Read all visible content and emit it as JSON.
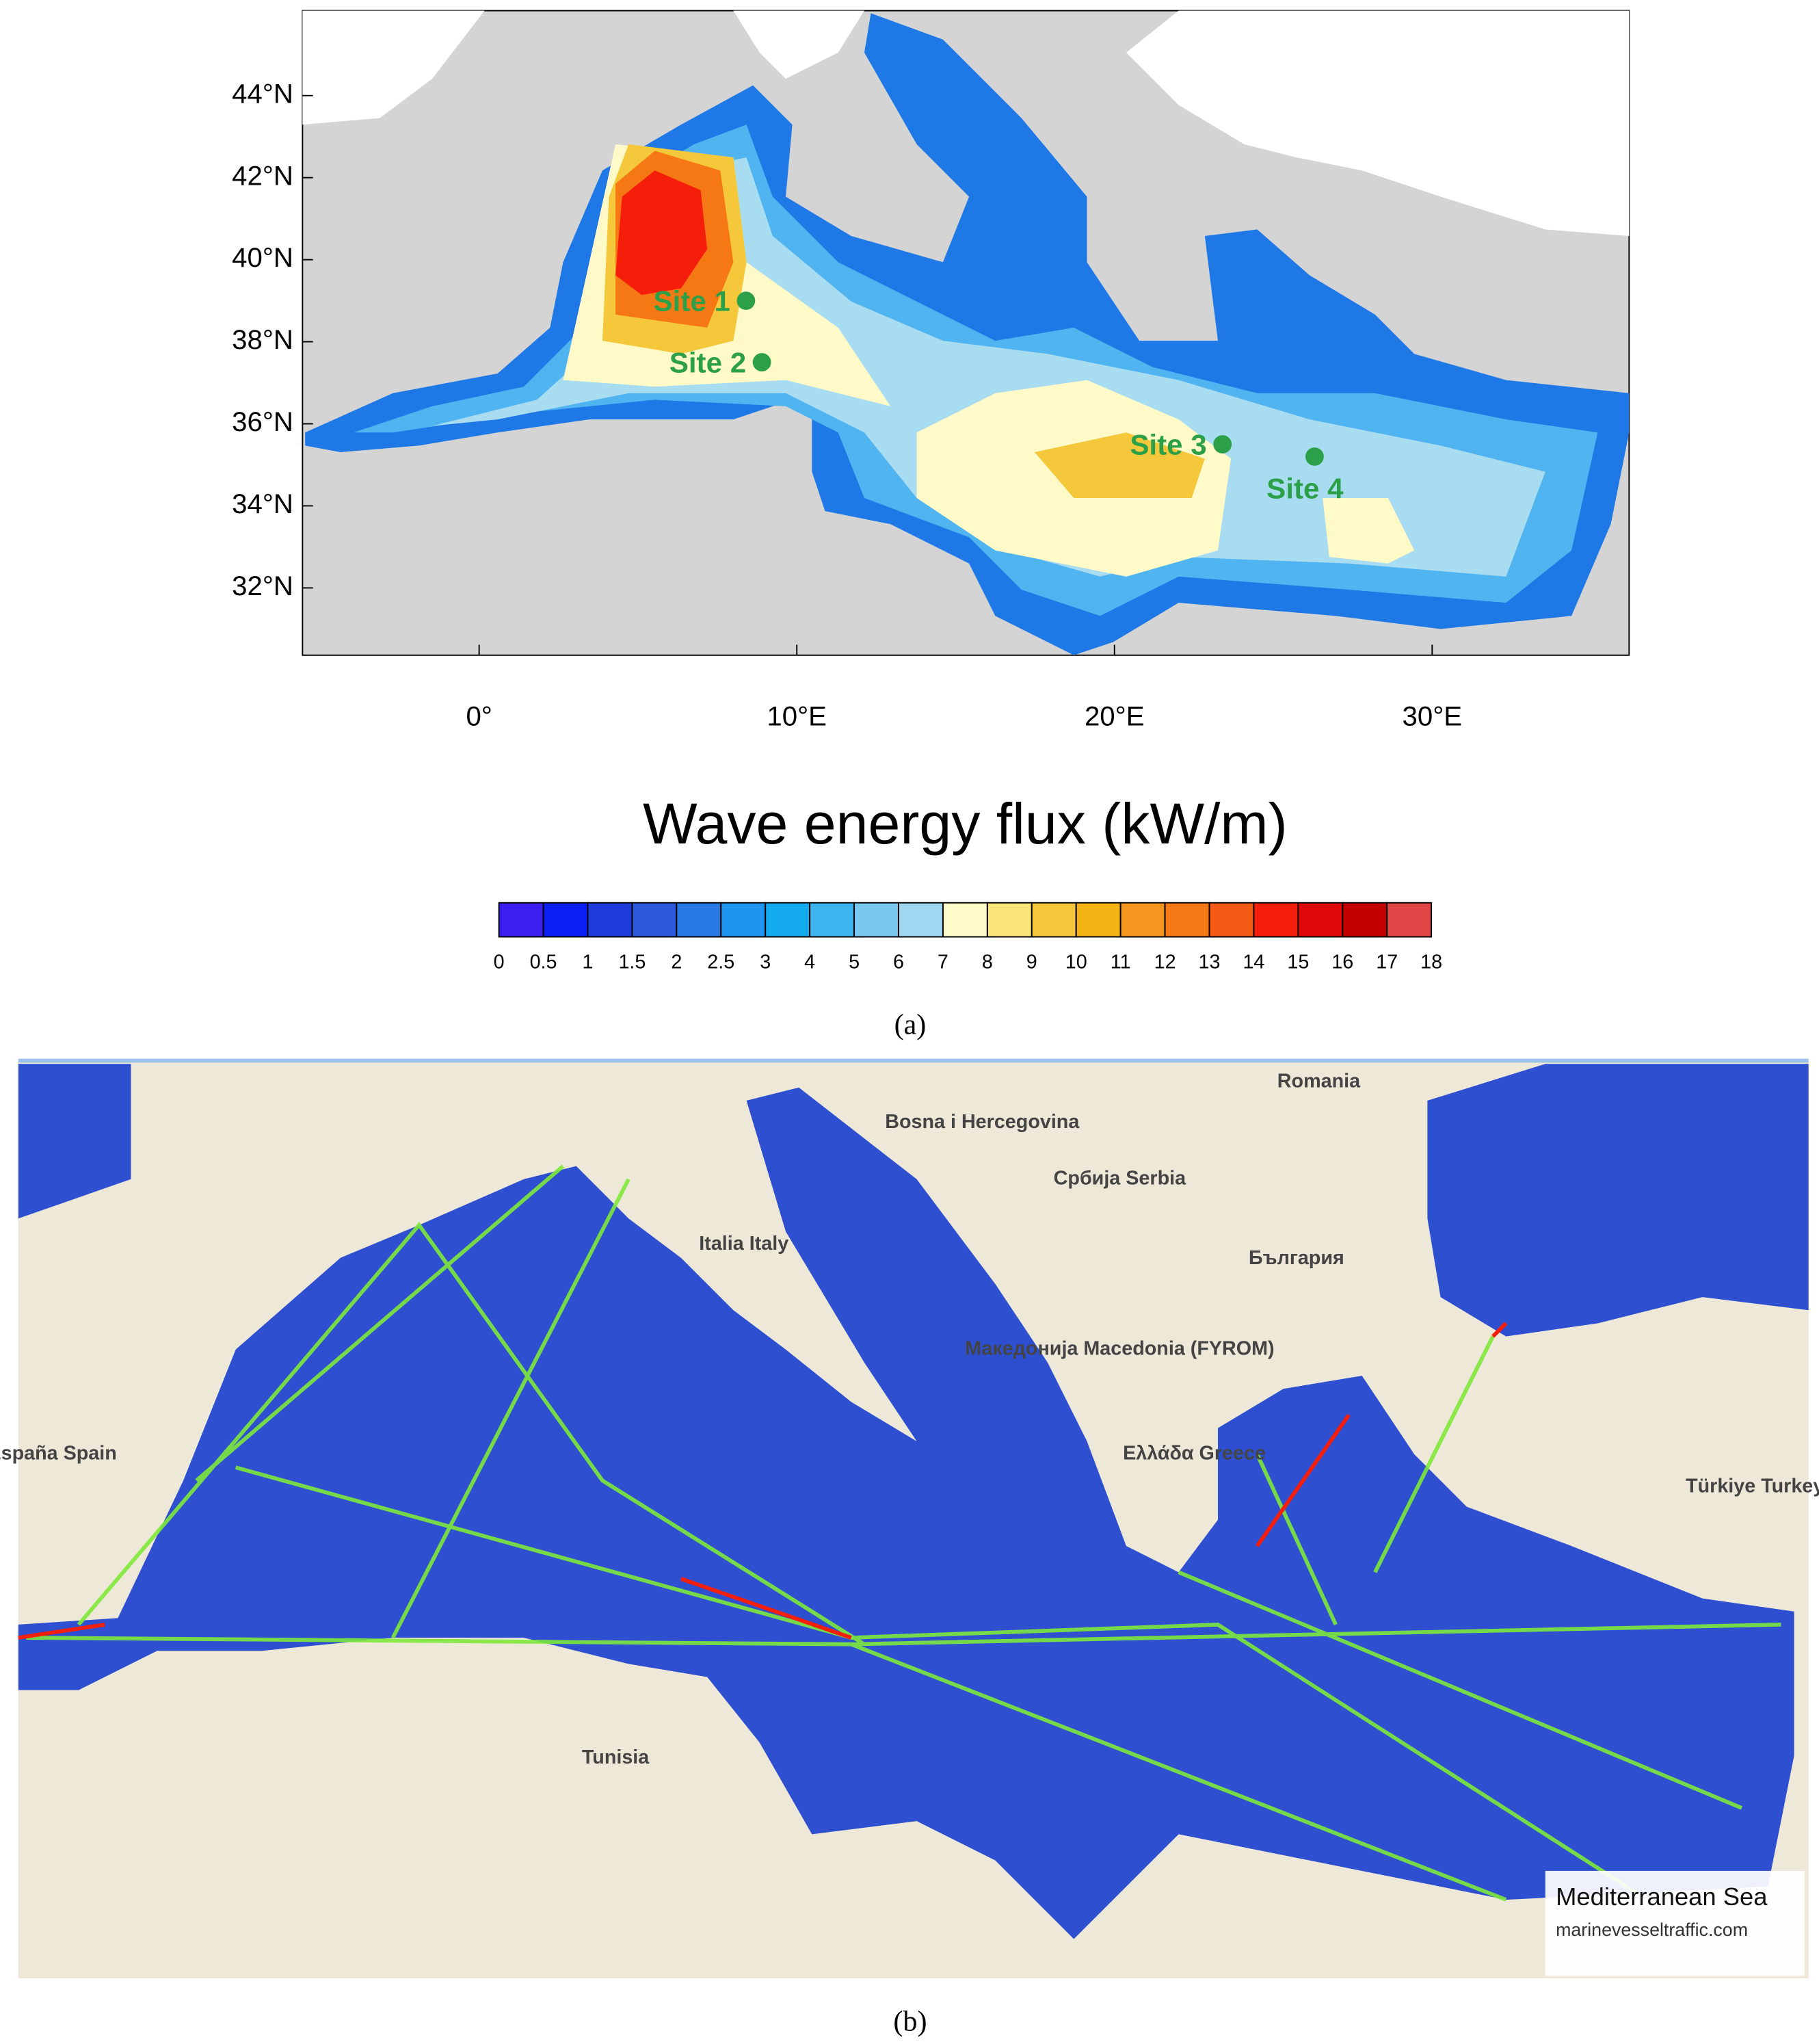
{
  "panel_a": {
    "title": "Wave energy flux (kW/m)",
    "xlim": [
      -5.56,
      36.2
    ],
    "ylim": [
      30.36,
      46.07
    ],
    "xticks": [
      {
        "value": 0,
        "label": "0°"
      },
      {
        "value": 10,
        "label": "10°E"
      },
      {
        "value": 20,
        "label": "20°E"
      },
      {
        "value": 30,
        "label": "30°E"
      }
    ],
    "yticks": [
      {
        "value": 32,
        "label": "32°N"
      },
      {
        "value": 34,
        "label": "34°N"
      },
      {
        "value": 36,
        "label": "36°N"
      },
      {
        "value": 38,
        "label": "38°N"
      },
      {
        "value": 40,
        "label": "40°N"
      },
      {
        "value": 42,
        "label": "42°N"
      },
      {
        "value": 44,
        "label": "44°N"
      }
    ],
    "sites": [
      {
        "label": "Site 1",
        "lon": 8.4,
        "lat": 39.0
      },
      {
        "label": "Site 2",
        "lon": 8.9,
        "lat": 37.5
      },
      {
        "label": "Site 3",
        "lon": 23.4,
        "lat": 35.5
      },
      {
        "label": "Site 4",
        "lon": 26.3,
        "lat": 35.2
      }
    ],
    "colorbar": {
      "ticks": [
        0,
        0.5,
        1,
        1.5,
        2,
        2.5,
        3,
        4,
        5,
        6,
        7,
        8,
        9,
        10,
        11,
        12,
        13,
        14,
        15,
        16,
        17,
        18
      ],
      "colors": [
        "#3c1ef0",
        "#0a1ef5",
        "#1e3cdc",
        "#2d5adc",
        "#2878e6",
        "#1e96f0",
        "#14aaf0",
        "#3cb4f0",
        "#78c8f0",
        "#a0d7f0",
        "#fffac8",
        "#fae678",
        "#f5c83c",
        "#f5b414",
        "#f5961e",
        "#f57814",
        "#f55a14",
        "#f51e0a",
        "#e10a0a",
        "#c30000",
        "#e14646"
      ]
    },
    "caption": "(a)"
  },
  "panel_b": {
    "labels": [
      "Romania",
      "Bosna i Hercegovina",
      "Србија Serbia",
      "България",
      "Italia Italy",
      "España Spain",
      "Tunisia",
      "Ελλάδα Greece",
      "Türkiye Turkey",
      "Македонија Macedonia (FYROM)"
    ],
    "legend_title": "Mediterranean Sea",
    "legend_source": "marinevesseltraffic.com",
    "caption": "(b)"
  }
}
